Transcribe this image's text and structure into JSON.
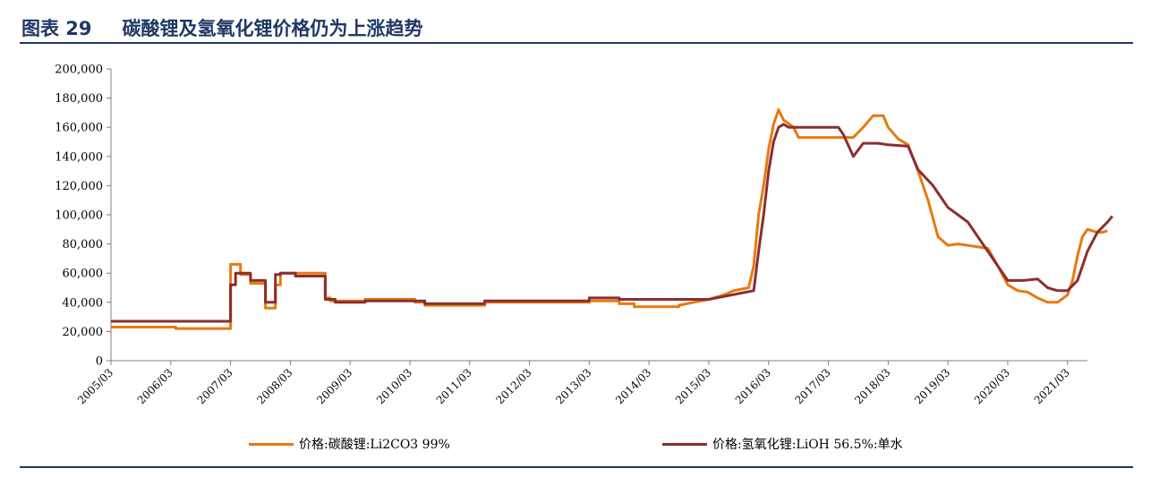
{
  "figure": {
    "number": "图表 29",
    "title": "碳酸锂及氢氧化锂价格仍为上涨趋势"
  },
  "chart_data": {
    "type": "line",
    "ylim": [
      0,
      200000
    ],
    "y_ticks": [
      "0",
      "20,000",
      "40,000",
      "60,000",
      "80,000",
      "100,000",
      "120,000",
      "140,000",
      "160,000",
      "180,000",
      "200,000"
    ],
    "x_ticks": [
      "2005/03",
      "2006/03",
      "2007/03",
      "2008/03",
      "2009/03",
      "2010/03",
      "2011/03",
      "2012/03",
      "2013/03",
      "2014/03",
      "2015/03",
      "2016/03",
      "2017/03",
      "2018/03",
      "2019/03",
      "2020/03",
      "2021/03"
    ],
    "xlim": [
      "2005/03",
      "2021/07"
    ],
    "grid": false,
    "legend_position": "bottom",
    "colors": {
      "li2co3": "#e8790e",
      "lioh": "#8b2e2f",
      "axis": "#808080",
      "rule": "#1f3864"
    },
    "series": [
      {
        "name": "价格:碳酸锂:Li2CO3 99%",
        "points": [
          [
            "2005/03",
            23000
          ],
          [
            "2006/04",
            23000
          ],
          [
            "2006/04",
            22000
          ],
          [
            "2007/03",
            22000
          ],
          [
            "2007/03",
            66000
          ],
          [
            "2007/05",
            66000
          ],
          [
            "2007/05",
            59000
          ],
          [
            "2007/07",
            59000
          ],
          [
            "2007/07",
            53000
          ],
          [
            "2007/10",
            53000
          ],
          [
            "2007/10",
            36000
          ],
          [
            "2007/12",
            36000
          ],
          [
            "2007/12",
            52000
          ],
          [
            "2008/01",
            52000
          ],
          [
            "2008/01",
            60000
          ],
          [
            "2008/10",
            60000
          ],
          [
            "2008/10",
            43000
          ],
          [
            "2008/11",
            43000
          ],
          [
            "2008/11",
            41000
          ],
          [
            "2009/06",
            41000
          ],
          [
            "2009/06",
            42000
          ],
          [
            "2010/04",
            42000
          ],
          [
            "2010/04",
            40000
          ],
          [
            "2010/06",
            40000
          ],
          [
            "2010/06",
            38000
          ],
          [
            "2011/06",
            38000
          ],
          [
            "2011/06",
            40000
          ],
          [
            "2013/03",
            40000
          ],
          [
            "2013/03",
            41000
          ],
          [
            "2013/09",
            41000
          ],
          [
            "2013/09",
            39000
          ],
          [
            "2013/12",
            39000
          ],
          [
            "2013/12",
            37000
          ],
          [
            "2014/09",
            37000
          ],
          [
            "2014/09",
            38000
          ],
          [
            "2014/12",
            40000
          ],
          [
            "2015/03",
            42000
          ],
          [
            "2015/06",
            45000
          ],
          [
            "2015/08",
            48000
          ],
          [
            "2015/11",
            50000
          ],
          [
            "2015/12",
            65000
          ],
          [
            "2016/01",
            100000
          ],
          [
            "2016/02",
            120000
          ],
          [
            "2016/03",
            145000
          ],
          [
            "2016/04",
            162000
          ],
          [
            "2016/05",
            172000
          ],
          [
            "2016/06",
            165000
          ],
          [
            "2016/08",
            160000
          ],
          [
            "2016/09",
            153000
          ],
          [
            "2017/08",
            153000
          ],
          [
            "2017/10",
            160000
          ],
          [
            "2017/12",
            168000
          ],
          [
            "2018/02",
            168000
          ],
          [
            "2018/03",
            160000
          ],
          [
            "2018/05",
            152000
          ],
          [
            "2018/07",
            148000
          ],
          [
            "2018/09",
            130000
          ],
          [
            "2018/11",
            110000
          ],
          [
            "2019/01",
            85000
          ],
          [
            "2019/03",
            79000
          ],
          [
            "2019/05",
            80000
          ],
          [
            "2019/07",
            79000
          ],
          [
            "2019/09",
            78000
          ],
          [
            "2019/11",
            77000
          ],
          [
            "2020/01",
            65000
          ],
          [
            "2020/03",
            52000
          ],
          [
            "2020/05",
            48000
          ],
          [
            "2020/07",
            47000
          ],
          [
            "2020/09",
            43000
          ],
          [
            "2020/11",
            40000
          ],
          [
            "2021/01",
            40000
          ],
          [
            "2021/03",
            45000
          ],
          [
            "2021/04",
            55000
          ],
          [
            "2021/05",
            72000
          ],
          [
            "2021/06",
            85000
          ],
          [
            "2021/07",
            90000
          ],
          [
            "2021/09",
            88000
          ],
          [
            "2021/10",
            88000
          ],
          [
            "2021/11",
            89000
          ]
        ]
      },
      {
        "name": "价格:氢氧化锂:LiOH 56.5%:单水",
        "points": [
          [
            "2005/03",
            27000
          ],
          [
            "2007/03",
            27000
          ],
          [
            "2007/03",
            52000
          ],
          [
            "2007/04",
            52000
          ],
          [
            "2007/04",
            60000
          ],
          [
            "2007/07",
            60000
          ],
          [
            "2007/07",
            55000
          ],
          [
            "2007/10",
            55000
          ],
          [
            "2007/10",
            40000
          ],
          [
            "2007/12",
            40000
          ],
          [
            "2007/12",
            59000
          ],
          [
            "2008/01",
            59000
          ],
          [
            "2008/01",
            60000
          ],
          [
            "2008/04",
            60000
          ],
          [
            "2008/04",
            58000
          ],
          [
            "2008/10",
            58000
          ],
          [
            "2008/10",
            42000
          ],
          [
            "2008/12",
            42000
          ],
          [
            "2008/12",
            40000
          ],
          [
            "2009/06",
            40000
          ],
          [
            "2009/06",
            41000
          ],
          [
            "2010/06",
            41000
          ],
          [
            "2010/06",
            39000
          ],
          [
            "2011/06",
            39000
          ],
          [
            "2011/06",
            41000
          ],
          [
            "2013/03",
            41000
          ],
          [
            "2013/03",
            43000
          ],
          [
            "2013/09",
            43000
          ],
          [
            "2013/09",
            42000
          ],
          [
            "2015/03",
            42000
          ],
          [
            "2015/06",
            44000
          ],
          [
            "2015/09",
            46000
          ],
          [
            "2015/12",
            48000
          ],
          [
            "2016/01",
            75000
          ],
          [
            "2016/02",
            100000
          ],
          [
            "2016/03",
            130000
          ],
          [
            "2016/04",
            150000
          ],
          [
            "2016/05",
            160000
          ],
          [
            "2016/06",
            162000
          ],
          [
            "2016/07",
            160000
          ],
          [
            "2017/05",
            160000
          ],
          [
            "2017/06",
            155000
          ],
          [
            "2017/08",
            140000
          ],
          [
            "2017/10",
            149000
          ],
          [
            "2018/01",
            149000
          ],
          [
            "2018/03",
            148000
          ],
          [
            "2018/07",
            147000
          ],
          [
            "2018/09",
            131000
          ],
          [
            "2018/12",
            120000
          ],
          [
            "2019/03",
            105000
          ],
          [
            "2019/05",
            100000
          ],
          [
            "2019/07",
            95000
          ],
          [
            "2019/09",
            85000
          ],
          [
            "2019/11",
            75000
          ],
          [
            "2020/01",
            65000
          ],
          [
            "2020/03",
            55000
          ],
          [
            "2020/06",
            55000
          ],
          [
            "2020/09",
            56000
          ],
          [
            "2020/11",
            50000
          ],
          [
            "2021/01",
            48000
          ],
          [
            "2021/03",
            48000
          ],
          [
            "2021/05",
            55000
          ],
          [
            "2021/07",
            75000
          ],
          [
            "2021/09",
            88000
          ],
          [
            "2021/11",
            95000
          ],
          [
            "2021/12",
            99000
          ]
        ]
      }
    ]
  }
}
